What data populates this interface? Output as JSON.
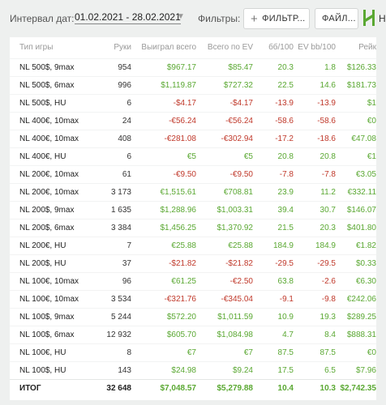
{
  "toolbar": {
    "date_label": "Интервал дат:",
    "date_range": "01.02.2021 - 28.02.2021",
    "filters_label": "Фильтры:",
    "filter_button": "ФИЛЬТР...",
    "file_button": "ФАЙЛ...",
    "logo_text": "H"
  },
  "colors": {
    "positive": "#5aa832",
    "negative": "#c0392b",
    "accent": "#5aa832"
  },
  "table": {
    "columns": [
      "Тип игры",
      "Руки",
      "Выиграл всего",
      "Всего по EV",
      "бб/100",
      "EV bb/100",
      "Рейк"
    ],
    "rows": [
      {
        "game": "NL 500$, 9max",
        "hands": "954",
        "won": "$967.17",
        "ev": "$85.47",
        "bb": "20.3",
        "evbb": "1.8",
        "rake": "$126.33"
      },
      {
        "game": "NL 500$, 6max",
        "hands": "996",
        "won": "$1,119.87",
        "ev": "$727.32",
        "bb": "22.5",
        "evbb": "14.6",
        "rake": "$181.73"
      },
      {
        "game": "NL 500$, HU",
        "hands": "6",
        "won": "-$4.17",
        "ev": "-$4.17",
        "bb": "-13.9",
        "evbb": "-13.9",
        "rake": "$1"
      },
      {
        "game": "NL 400€, 10max",
        "hands": "24",
        "won": "-€56.24",
        "ev": "-€56.24",
        "bb": "-58.6",
        "evbb": "-58.6",
        "rake": "€0"
      },
      {
        "game": "NL 400€, 10max",
        "hands": "408",
        "won": "-€281.08",
        "ev": "-€302.94",
        "bb": "-17.2",
        "evbb": "-18.6",
        "rake": "€47.08"
      },
      {
        "game": "NL 400€, HU",
        "hands": "6",
        "won": "€5",
        "ev": "€5",
        "bb": "20.8",
        "evbb": "20.8",
        "rake": "€1"
      },
      {
        "game": "NL 200€, 10max",
        "hands": "61",
        "won": "-€9.50",
        "ev": "-€9.50",
        "bb": "-7.8",
        "evbb": "-7.8",
        "rake": "€3.05"
      },
      {
        "game": "NL 200€, 10max",
        "hands": "3 173",
        "won": "€1,515.61",
        "ev": "€708.81",
        "bb": "23.9",
        "evbb": "11.2",
        "rake": "€332.11"
      },
      {
        "game": "NL 200$, 9max",
        "hands": "1 635",
        "won": "$1,288.96",
        "ev": "$1,003.31",
        "bb": "39.4",
        "evbb": "30.7",
        "rake": "$146.07"
      },
      {
        "game": "NL 200$, 6max",
        "hands": "3 384",
        "won": "$1,456.25",
        "ev": "$1,370.92",
        "bb": "21.5",
        "evbb": "20.3",
        "rake": "$401.80"
      },
      {
        "game": "NL 200€, HU",
        "hands": "7",
        "won": "€25.88",
        "ev": "€25.88",
        "bb": "184.9",
        "evbb": "184.9",
        "rake": "€1.82"
      },
      {
        "game": "NL 200$, HU",
        "hands": "37",
        "won": "-$21.82",
        "ev": "-$21.82",
        "bb": "-29.5",
        "evbb": "-29.5",
        "rake": "$0.33"
      },
      {
        "game": "NL 100€, 10max",
        "hands": "96",
        "won": "€61.25",
        "ev": "-€2.50",
        "bb": "63.8",
        "evbb": "-2.6",
        "rake": "€6.30"
      },
      {
        "game": "NL 100€, 10max",
        "hands": "3 534",
        "won": "-€321.76",
        "ev": "-€345.04",
        "bb": "-9.1",
        "evbb": "-9.8",
        "rake": "€242.06"
      },
      {
        "game": "NL 100$, 9max",
        "hands": "5 244",
        "won": "$572.20",
        "ev": "$1,011.59",
        "bb": "10.9",
        "evbb": "19.3",
        "rake": "$289.25"
      },
      {
        "game": "NL 100$, 6max",
        "hands": "12 932",
        "won": "$605.70",
        "ev": "$1,084.98",
        "bb": "4.7",
        "evbb": "8.4",
        "rake": "$888.31"
      },
      {
        "game": "NL 100€, HU",
        "hands": "8",
        "won": "€7",
        "ev": "€7",
        "bb": "87.5",
        "evbb": "87.5",
        "rake": "€0"
      },
      {
        "game": "NL 100$, HU",
        "hands": "143",
        "won": "$24.98",
        "ev": "$9.24",
        "bb": "17.5",
        "evbb": "6.5",
        "rake": "$7.96"
      }
    ],
    "total": {
      "game": "ИТОГ",
      "hands": "32 648",
      "won": "$7,048.57",
      "ev": "$5,279.88",
      "bb": "10.4",
      "evbb": "10.3",
      "rake": "$2,742.35"
    }
  }
}
